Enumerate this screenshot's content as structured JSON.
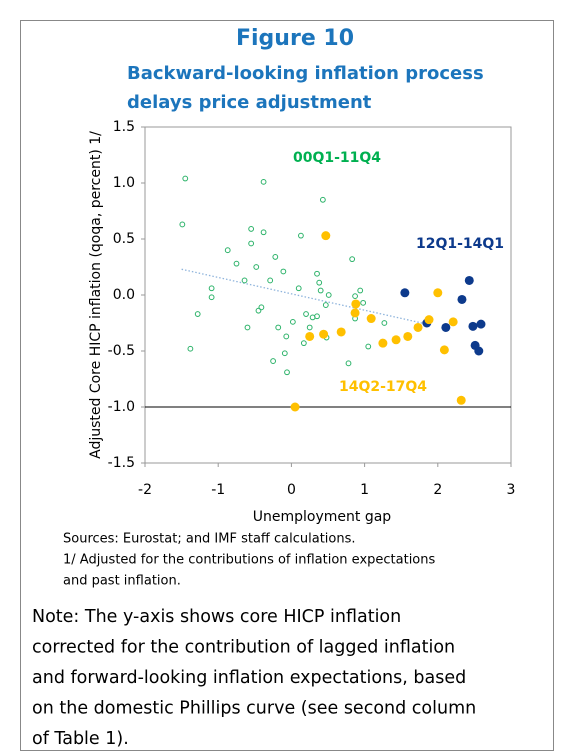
{
  "chart_data": {
    "type": "scatter",
    "title": "Figure 10",
    "subtitle": [
      "Backward-looking inflation process",
      "delays price adjustment"
    ],
    "y_label": "Adjusted Core HICP inflation (qoqa, percent) 1/",
    "x_label": "Unemployment gap",
    "xlim": [
      -2,
      3
    ],
    "ylim": [
      -1.5,
      1.5
    ],
    "xticks": [
      -2,
      -1,
      0,
      1,
      2,
      3
    ],
    "yticks": [
      1.5,
      {
        "value": 1.0,
        "label": "1.0"
      },
      0.5,
      {
        "value": 0.0,
        "label": "0.0"
      },
      -0.5,
      {
        "value": -1.0,
        "label": "-1.0"
      },
      -1.5
    ],
    "x_axis_at": -1,
    "series": [
      {
        "name": "00Q1-11Q4",
        "color": "#2db36a",
        "label_color": "#00b050",
        "marker": "hollow",
        "x": [
          -1.45,
          -1.49,
          -1.38,
          -1.28,
          -1.09,
          -1.09,
          -0.87,
          -0.75,
          -0.64,
          -0.6,
          -0.55,
          -0.55,
          -0.48,
          -0.45,
          -0.41,
          -0.38,
          -0.38,
          -0.29,
          -0.22,
          -0.25,
          -0.18,
          -0.11,
          -0.09,
          -0.06,
          -0.07,
          0.02,
          0.1,
          0.13,
          0.17,
          0.2,
          0.25,
          0.29,
          0.35,
          0.35,
          0.38,
          0.4,
          0.43,
          0.47,
          0.48,
          0.51,
          0.78,
          0.83,
          0.87,
          0.87,
          0.94,
          0.98,
          1.05,
          1.27
        ],
        "values": [
          1.04,
          0.63,
          -0.48,
          -0.17,
          0.06,
          -0.02,
          0.4,
          0.28,
          0.13,
          -0.29,
          0.59,
          0.46,
          0.25,
          -0.14,
          -0.11,
          1.01,
          0.56,
          0.13,
          0.34,
          -0.59,
          -0.29,
          0.21,
          -0.52,
          -0.69,
          -0.37,
          -0.24,
          0.06,
          0.53,
          -0.43,
          -0.17,
          -0.29,
          -0.2,
          0.19,
          -0.19,
          0.11,
          0.04,
          0.85,
          -0.09,
          -0.38,
          0.0,
          -0.61,
          0.32,
          -0.21,
          -0.01,
          0.04,
          -0.07,
          -0.46,
          -0.25
        ]
      },
      {
        "name": "12Q1-14Q1",
        "color": "#0d3a8c",
        "label_color": "#0d3a8c",
        "marker": "filled",
        "x": [
          1.55,
          1.85,
          2.11,
          2.33,
          2.43,
          2.48,
          2.59,
          2.51,
          2.56
        ],
        "values": [
          0.02,
          -0.25,
          -0.29,
          -0.04,
          0.13,
          -0.28,
          -0.26,
          -0.45,
          -0.5
        ]
      },
      {
        "name": "14Q2-17Q4",
        "color": "#ffc000",
        "label_color": "#ffc000",
        "marker": "filled",
        "x": [
          0.47,
          0.05,
          0.25,
          0.44,
          0.68,
          0.88,
          0.87,
          1.09,
          1.25,
          1.43,
          1.59,
          1.73,
          1.88,
          2.0,
          2.21,
          2.09,
          2.32
        ],
        "values": [
          0.53,
          -1.0,
          -0.37,
          -0.35,
          -0.33,
          -0.08,
          -0.16,
          -0.21,
          -0.43,
          -0.4,
          -0.37,
          -0.29,
          -0.22,
          0.02,
          -0.24,
          -0.49,
          -0.94
        ]
      }
    ],
    "trend_line": {
      "color": "#8fb4dc",
      "x": [
        -1.5,
        1.85
      ],
      "values": [
        0.23,
        -0.26
      ]
    },
    "sources": [
      "Sources: Eurostat; and IMF staff calculations.",
      "1/ Adjusted for the contributions of inflation expectations",
      "and past inflation."
    ],
    "note": [
      "Note: The y-axis shows core HICP inflation",
      "corrected for the contribution of lagged inflation",
      "and forward-looking inflation expectations, based",
      "on the domestic Phillips curve (see second column",
      "of Table 1)."
    ]
  }
}
